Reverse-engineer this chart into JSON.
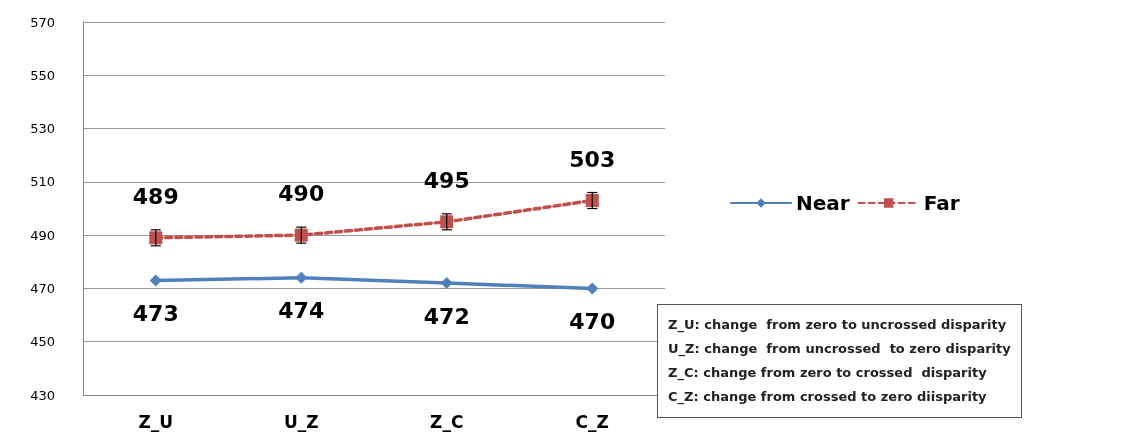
{
  "chart_data": {
    "type": "line",
    "categories": [
      "Z_U",
      "U_Z",
      "Z_C",
      "C_Z"
    ],
    "series": [
      {
        "name": "Near",
        "color": "#4f81bd",
        "values": [
          473,
          474,
          472,
          470
        ],
        "marker": "diamond",
        "line_style": "solid"
      },
      {
        "name": "Far",
        "color": "#c0504d",
        "values": [
          489,
          490,
          495,
          503
        ],
        "errors": [
          3,
          3,
          3,
          3
        ],
        "marker": "square",
        "line_style": "dashed"
      }
    ],
    "ylim": [
      430,
      570
    ],
    "yticks": [
      430,
      450,
      470,
      490,
      510,
      530,
      550,
      570
    ],
    "grid": "y",
    "legend": "right",
    "data_labels": true,
    "annotations": [
      "Z_U: change  from zero to uncrossed disparity",
      "U_Z: change  from uncrossed  to zero disparity",
      "Z_C: change from zero to crossed  disparity",
      "C_Z: change from crossed to zero diisparity"
    ]
  }
}
